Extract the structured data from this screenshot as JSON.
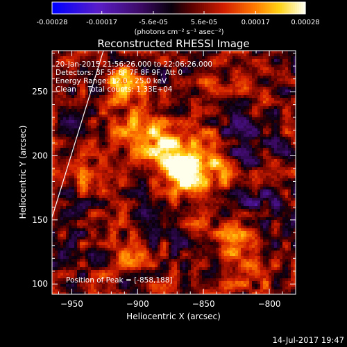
{
  "colorbar": {
    "tick_labels": [
      "-0.00028",
      "-0.00017",
      "-5.6e-05",
      "5.6e-05",
      "0.00017",
      "0.00028"
    ],
    "tick_values": [
      -0.00028,
      -0.00017,
      -5.6e-05,
      5.6e-05,
      0.00017,
      0.00028
    ],
    "unit_label": "(photons cm⁻² s⁻¹ asec⁻²)",
    "range": [
      -0.00028,
      0.00028
    ]
  },
  "chart_data": {
    "type": "heatmap",
    "title": "Reconstructed RHESSI Image",
    "xlabel": "Heliocentric X (arcsec)",
    "ylabel": "Heliocentric Y (arcsec)",
    "xlim": [
      -965,
      -780
    ],
    "ylim": [
      92,
      282
    ],
    "x_ticks": [
      -950,
      -900,
      -850,
      -800
    ],
    "y_ticks": [
      100,
      150,
      200,
      250
    ],
    "info_lines": [
      "20-Jan-2015 21:56:26.000 to 22:06:26.000",
      "Detectors: 3F 5F 6F 7F 8F 9F, Att 0",
      "Energy Range: 12.0 - 25.0 keV",
      "Clean     Total counts: 1.33E+04"
    ],
    "peak_label": "Position of Peak = [-858,188]",
    "peak": {
      "x": -858,
      "y": 188
    },
    "limb_line": [
      {
        "x": -965,
        "y": 152
      },
      {
        "x": -926,
        "y": 282
      }
    ],
    "sources": [
      {
        "x": -858,
        "y": 188,
        "amp": 0.00028,
        "sigma": 16
      },
      {
        "x": -880,
        "y": 205,
        "amp": 0.00018,
        "sigma": 14
      },
      {
        "x": -900,
        "y": 230,
        "amp": 0.00012,
        "sigma": 14
      },
      {
        "x": -910,
        "y": 258,
        "amp": 0.0002,
        "sigma": 8
      },
      {
        "x": -940,
        "y": 185,
        "amp": 0.0001,
        "sigma": 10
      },
      {
        "x": -830,
        "y": 135,
        "amp": 0.00014,
        "sigma": 10
      },
      {
        "x": -810,
        "y": 110,
        "amp": 0.0001,
        "sigma": 9
      },
      {
        "x": -905,
        "y": 120,
        "amp": 8e-05,
        "sigma": 10
      },
      {
        "x": -850,
        "y": 255,
        "amp": 7e-05,
        "sigma": 10
      },
      {
        "x": -820,
        "y": 210,
        "amp": -9e-05,
        "sigma": 14
      },
      {
        "x": -805,
        "y": 165,
        "amp": -8e-05,
        "sigma": 12
      },
      {
        "x": -880,
        "y": 150,
        "amp": -7e-05,
        "sigma": 10
      },
      {
        "x": -945,
        "y": 225,
        "amp": -6e-05,
        "sigma": 9
      }
    ]
  },
  "footer": {
    "timestamp": "14-Jul-2017 19:47"
  }
}
